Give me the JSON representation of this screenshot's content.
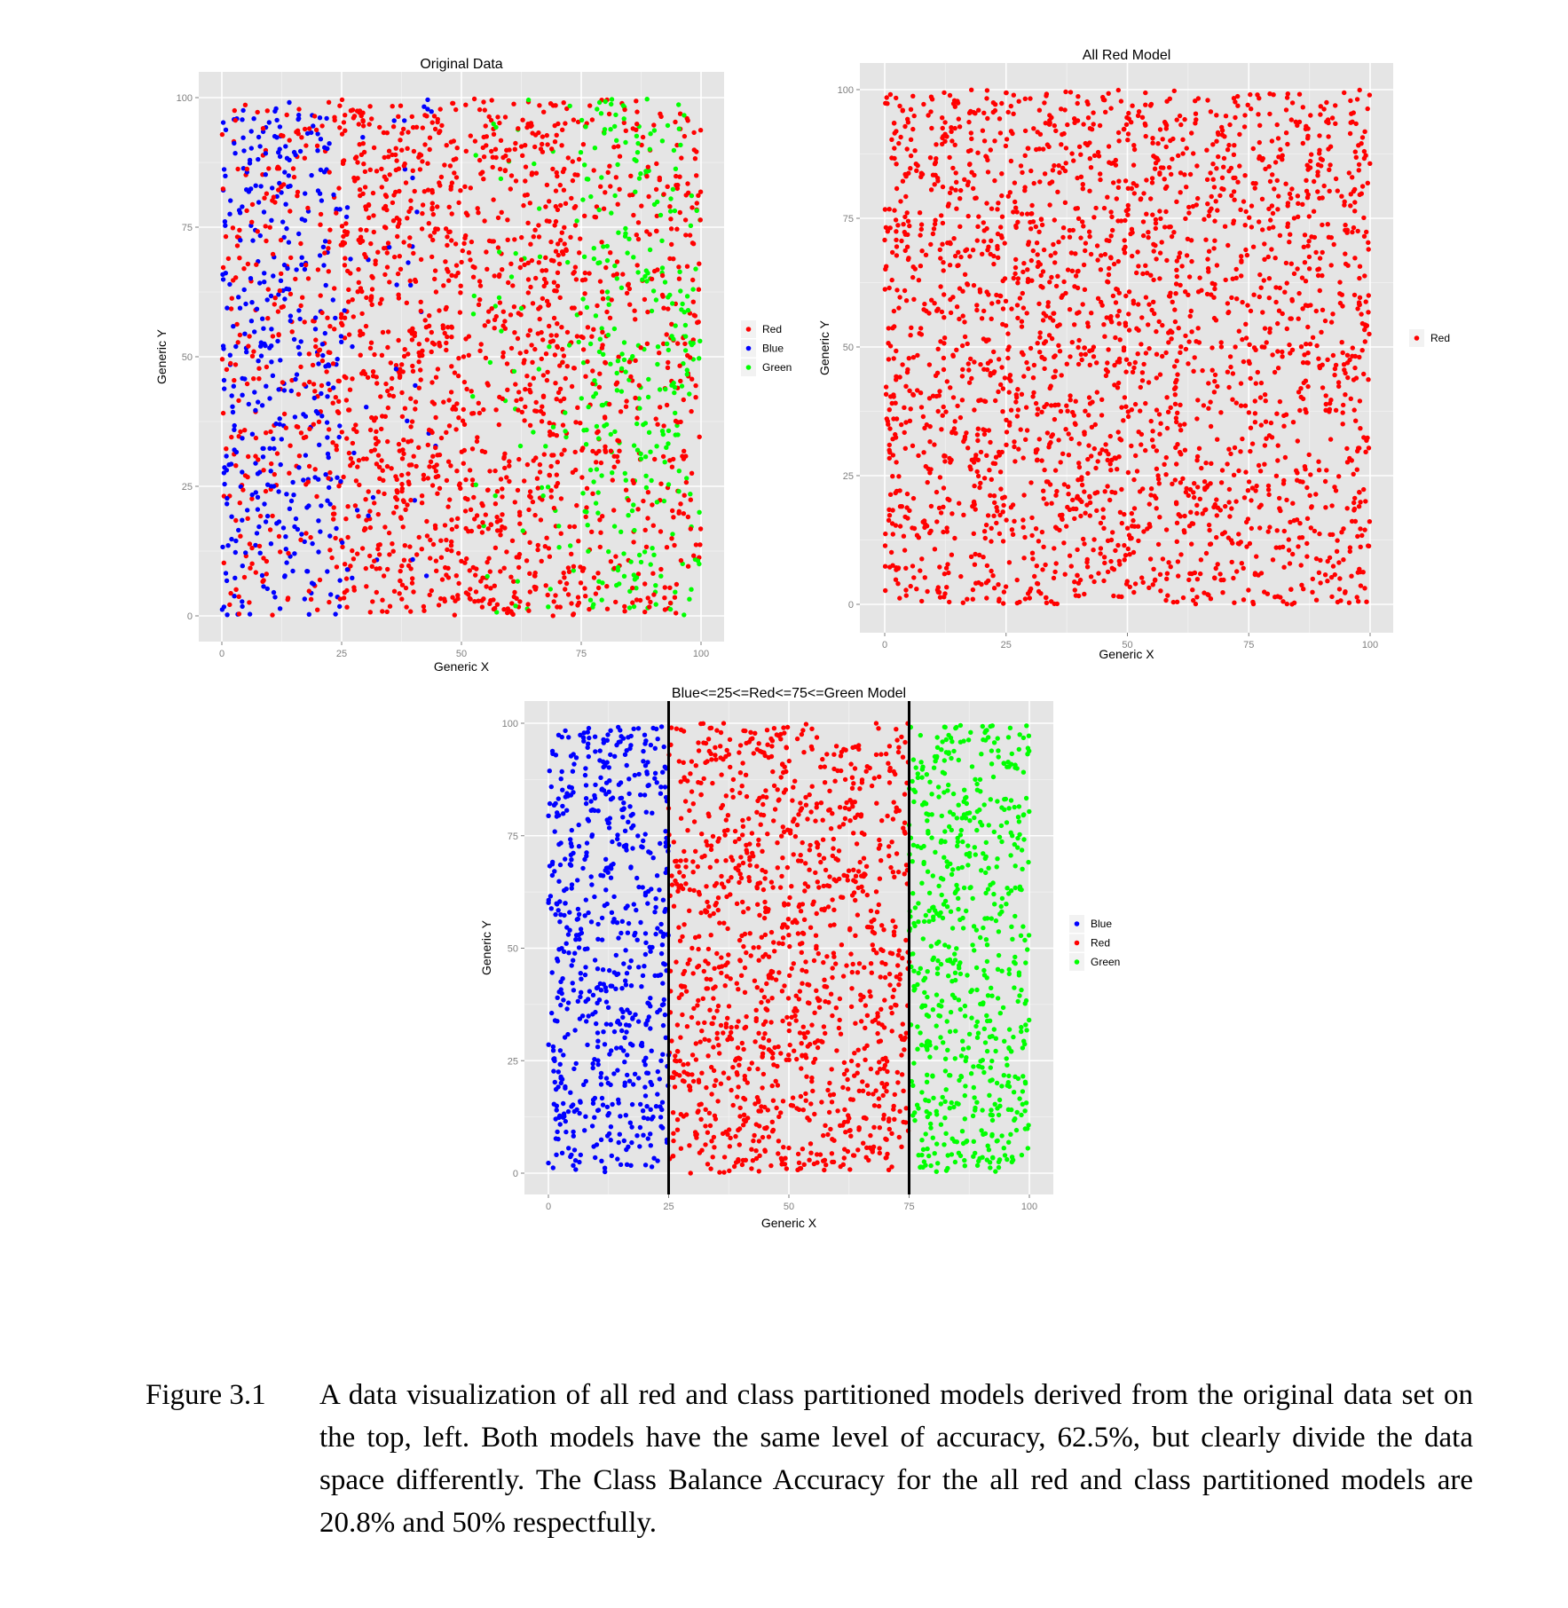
{
  "chart_data": [
    {
      "type": "scatter",
      "title": "Original Data",
      "xlabel": "Generic X",
      "ylabel": "Generic Y",
      "xlim": [
        0,
        100
      ],
      "ylim": [
        0,
        100
      ],
      "xticks": [
        0,
        25,
        50,
        75,
        100
      ],
      "yticks": [
        0,
        25,
        50,
        75,
        100
      ],
      "grid": true,
      "legend": {
        "position": "right",
        "entries": [
          "Red",
          "Blue",
          "Green"
        ]
      },
      "series": [
        {
          "name": "Red",
          "color": "#ff0000",
          "distribution": "uniform over x 0-100, y 0-100, dense everywhere except mixed regions"
        },
        {
          "name": "Blue",
          "color": "#0000ff",
          "distribution": "mostly x 0-25, y 0-100, sparse up to x≈45"
        },
        {
          "name": "Green",
          "color": "#00ff00",
          "distribution": "mostly x 75-100, y 0-100, sparse down to x≈50"
        }
      ]
    },
    {
      "type": "scatter",
      "title": "All Red Model",
      "xlabel": "Generic X",
      "ylabel": "Generic Y",
      "xlim": [
        0,
        100
      ],
      "ylim": [
        0,
        100
      ],
      "xticks": [
        0,
        25,
        50,
        75,
        100
      ],
      "yticks": [
        0,
        25,
        50,
        75,
        100
      ],
      "grid": true,
      "legend": {
        "position": "right",
        "entries": [
          "Red"
        ]
      },
      "series": [
        {
          "name": "Red",
          "color": "#ff0000",
          "distribution": "uniform over x 0-100, y 0-100"
        }
      ]
    },
    {
      "type": "scatter",
      "title": "Blue<=25<=Red<=75<=Green Model",
      "xlabel": "Generic X",
      "ylabel": "Generic Y",
      "xlim": [
        0,
        100
      ],
      "ylim": [
        0,
        100
      ],
      "xticks": [
        0,
        25,
        50,
        75,
        100
      ],
      "yticks": [
        0,
        25,
        50,
        75,
        100
      ],
      "grid": true,
      "vlines": [
        25,
        75
      ],
      "legend": {
        "position": "right",
        "entries": [
          "Blue",
          "Red",
          "Green"
        ]
      },
      "series": [
        {
          "name": "Blue",
          "color": "#0000ff",
          "distribution": "x 0-25, y 0-100"
        },
        {
          "name": "Red",
          "color": "#ff0000",
          "distribution": "x 25-75, y 0-100"
        },
        {
          "name": "Green",
          "color": "#00ff00",
          "distribution": "x 75-100, y 0-100"
        }
      ]
    }
  ],
  "caption": {
    "label": "Figure 3.1",
    "text": "A data visualization of all red and class partitioned models derived from the original data set on the top, left. Both models have the same level of accuracy, 62.5%, but clearly divide the data space differently. The Class Balance Accuracy for the all red and class partitioned models are 20.8% and 50% respectfully."
  }
}
